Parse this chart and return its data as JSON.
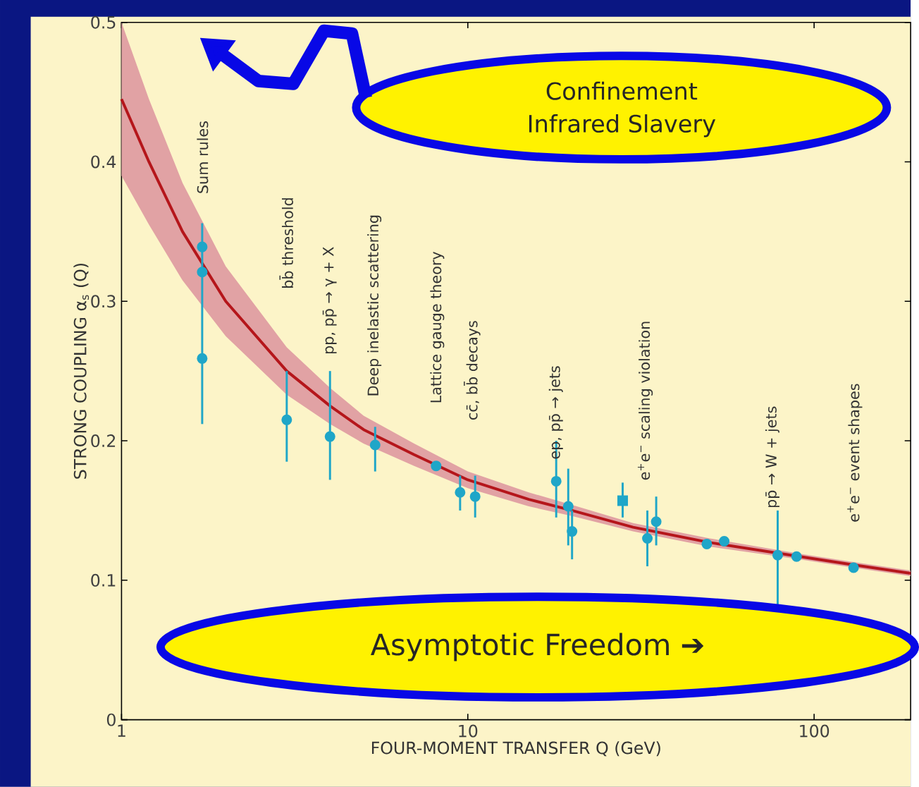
{
  "chart_data": {
    "type": "scatter",
    "xlabel": "FOUR-MOMENT TRANSFER  Q (GeV)",
    "ylabel": "STRONG COUPLING  α$_{s}$ (Q)",
    "log": "x",
    "xlim": [
      1,
      190
    ],
    "xticks": [
      1,
      10,
      100
    ],
    "ylim": [
      0,
      0.5
    ],
    "yticks": [
      0,
      0.1,
      0.2,
      0.3,
      0.4,
      0.5
    ],
    "series": [
      {
        "type": "line",
        "color": "#b5161b",
        "marker": "none",
        "x": [
          1,
          1.2,
          1.5,
          2,
          3,
          4,
          5,
          7,
          10,
          15,
          20,
          30,
          50,
          91,
          130,
          190
        ],
        "values": [
          0.445,
          0.4,
          0.35,
          0.3,
          0.25,
          0.225,
          0.208,
          0.19,
          0.172,
          0.158,
          0.15,
          0.138,
          0.127,
          0.117,
          0.111,
          0.105
        ],
        "lower": [
          0.39,
          0.355,
          0.315,
          0.275,
          0.233,
          0.212,
          0.198,
          0.182,
          0.166,
          0.153,
          0.146,
          0.135,
          0.124,
          0.115,
          0.109,
          0.103
        ],
        "upper": [
          0.5,
          0.445,
          0.385,
          0.325,
          0.267,
          0.238,
          0.218,
          0.198,
          0.178,
          0.163,
          0.154,
          0.141,
          0.13,
          0.119,
          0.113,
          0.107
        ]
      },
      {
        "color": "#1fa6c8",
        "marker": "circle",
        "x": [
          1.71,
          1.71,
          1.71,
          3,
          4,
          5.4,
          8.1,
          9.5,
          10.5,
          18,
          19.5,
          20,
          33,
          35,
          49,
          55,
          78.5,
          89,
          130
        ],
        "values": [
          0.339,
          0.321,
          0.259,
          0.215,
          0.203,
          0.197,
          0.182,
          0.163,
          0.16,
          0.171,
          0.153,
          0.135,
          0.13,
          0.142,
          0.126,
          0.128,
          0.118,
          0.117,
          0.109
        ],
        "errors": [
          null,
          null,
          [
            0.212,
            0.356
          ],
          [
            0.185,
            0.25
          ],
          [
            0.172,
            0.25
          ],
          [
            0.178,
            0.21
          ],
          null,
          [
            0.15,
            0.175
          ],
          [
            0.145,
            0.175
          ],
          [
            0.145,
            0.2
          ],
          [
            0.125,
            0.18
          ],
          [
            0.115,
            0.15
          ],
          [
            0.11,
            0.15
          ],
          [
            0.125,
            0.16
          ],
          null,
          null,
          [
            0.08,
            0.15
          ],
          null,
          null
        ]
      },
      {
        "color": "#1fa6c8",
        "marker": "square",
        "x": [
          28
        ],
        "values": [
          0.157
        ],
        "errors": [
          [
            0.145,
            0.17
          ]
        ]
      }
    ],
    "annotations": [
      "Sum rules",
      "bb̄ threshold",
      "pp, pp̄ → γ + X",
      "Deep inelastic scattering",
      "Lattice gauge theory",
      "cc̄, bb̄ decays",
      "ep, pp̄ → jets",
      "e$^{+}$e$^{−}$ scaling violation",
      "pp̄ → W + jets",
      "e$^{+}$e$^{−}$ event shapes",
      "Confinement",
      "Infrared Slavery",
      "Asymptotic Freedom ➔"
    ]
  }
}
